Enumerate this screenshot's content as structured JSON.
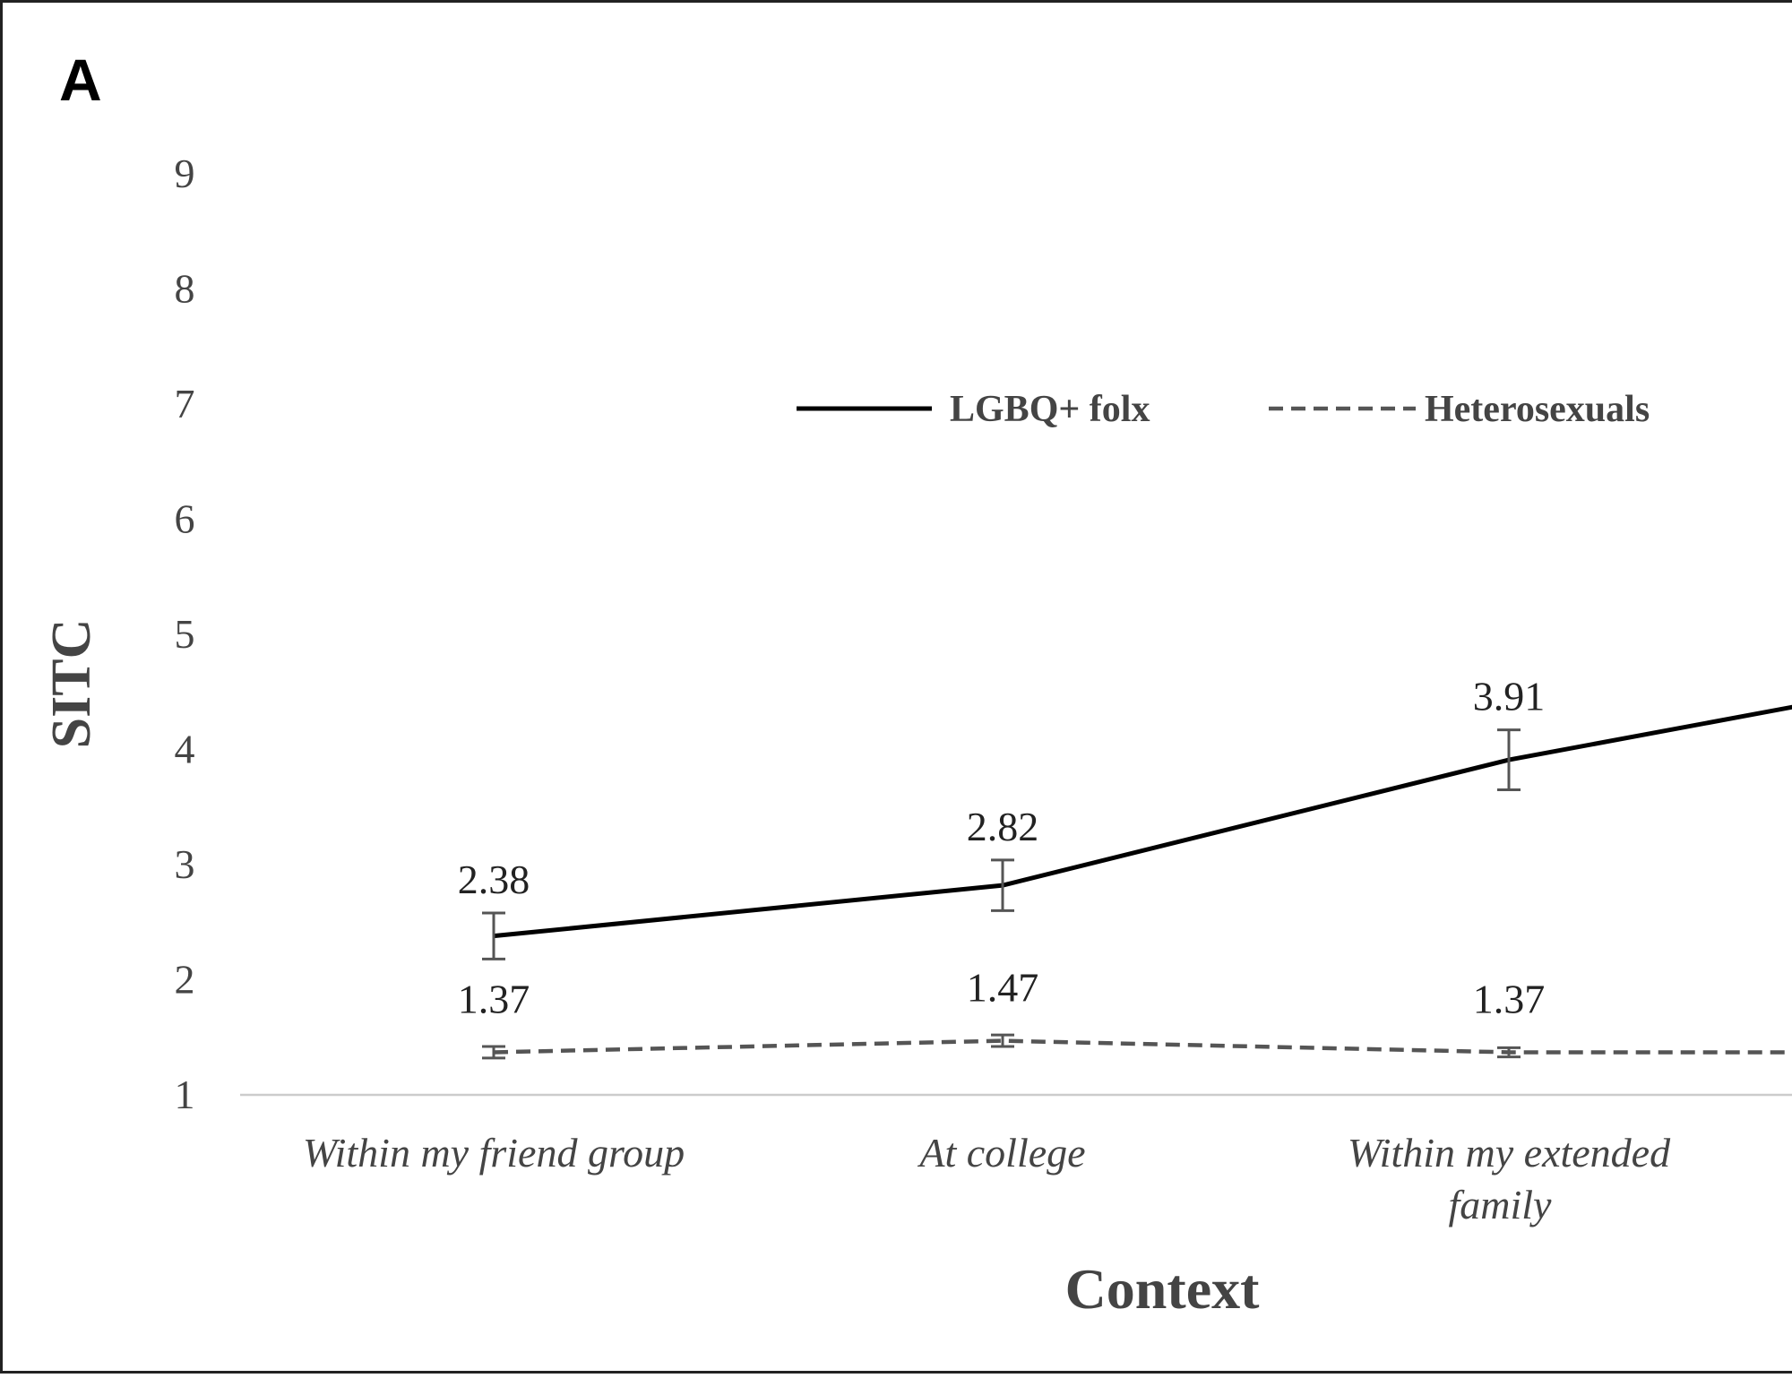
{
  "panel_label": "A",
  "chart_data": {
    "type": "line",
    "title": "",
    "xlabel": "Context",
    "ylabel": "SITC",
    "ylim": [
      1,
      9
    ],
    "yticks": [
      "1",
      "2",
      "3",
      "4",
      "5",
      "6",
      "7",
      "8",
      "9"
    ],
    "categories": [
      "Within my friend group",
      "At college",
      "Within my extended family"
    ],
    "category_lines": [
      [
        "Within my friend group"
      ],
      [
        "At college"
      ],
      [
        "Within my extended",
        "family"
      ]
    ],
    "legend_position": "top-center",
    "grid": false,
    "series": [
      {
        "name": "LGBQ+ folx",
        "style": "solid",
        "color": "#000000",
        "values": [
          2.38,
          2.82,
          3.91
        ],
        "labels": [
          "2.38",
          "2.82",
          "3.91"
        ],
        "error": [
          0.2,
          0.22,
          0.26
        ],
        "continues_right_toward": 4.73
      },
      {
        "name": "Heterosexuals",
        "style": "dashed",
        "color": "#555555",
        "values": [
          1.37,
          1.47,
          1.37
        ],
        "labels": [
          "1.37",
          "1.47",
          "1.37"
        ],
        "error": [
          0.05,
          0.05,
          0.04
        ],
        "continues_right_toward": 1.37
      }
    ]
  }
}
